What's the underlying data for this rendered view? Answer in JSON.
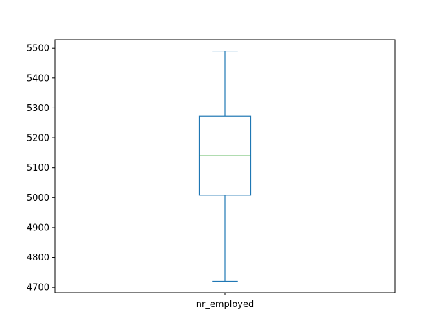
{
  "chart_data": {
    "type": "box",
    "categories": [
      "nr_employed"
    ],
    "boxes": [
      {
        "category": "nr_employed",
        "whisker_low": 4720,
        "q1": 5008,
        "median": 5140,
        "q3": 5273,
        "whisker_high": 5490
      }
    ],
    "y_ticks": [
      4700,
      4800,
      4900,
      5000,
      5100,
      5200,
      5300,
      5400,
      5500
    ],
    "ylim": [
      4682,
      5528
    ],
    "grid": false,
    "legend": "none",
    "colors": {
      "box": "#1f77b4",
      "median": "#2ca02c",
      "axes": "#000000"
    }
  }
}
